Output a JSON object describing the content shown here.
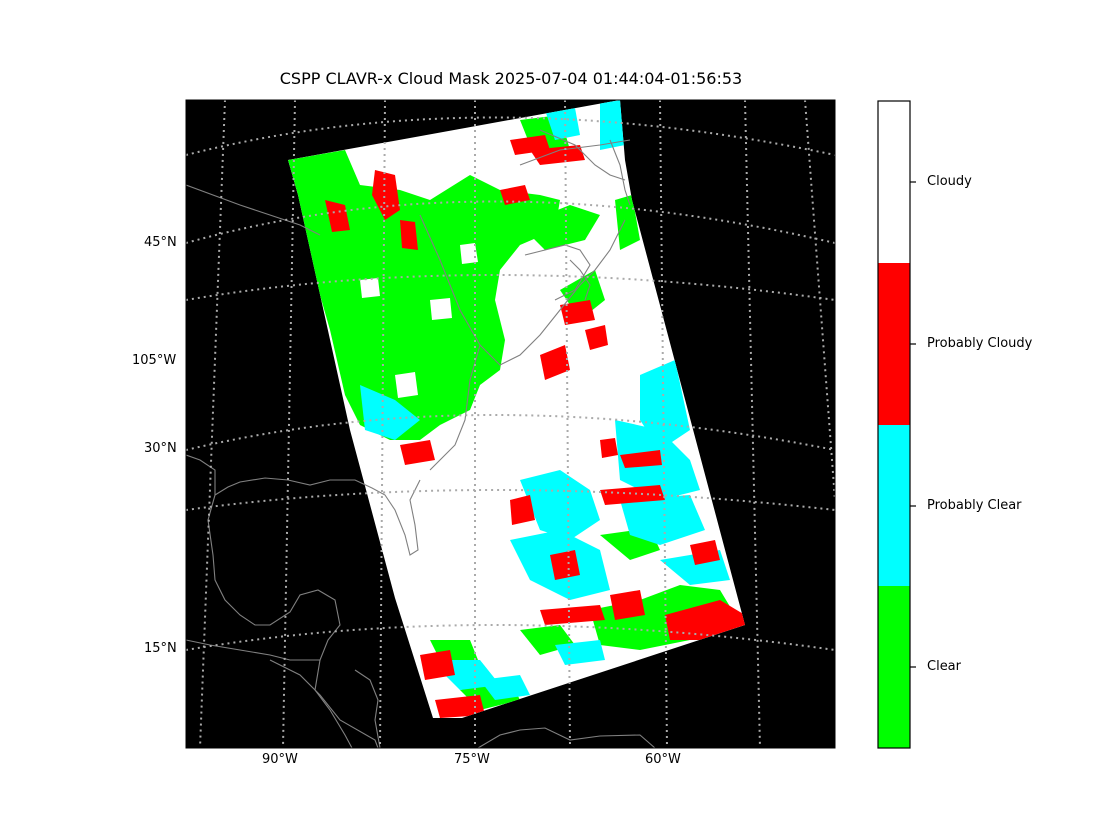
{
  "title": "CSPP CLAVR-x Cloud Mask 2025-07-04 01:44:04-01:56:53",
  "left_labels": [
    "45°N",
    "105°W",
    "30°N",
    "15°N"
  ],
  "bottom_labels": [
    "90°W",
    "75°W",
    "60°W"
  ],
  "colorbar": {
    "categories": [
      {
        "label": "Cloudy",
        "color": "#ffffff"
      },
      {
        "label": "Probably Cloudy",
        "color": "#ff0000"
      },
      {
        "label": "Probably Clear",
        "color": "#00ffff"
      },
      {
        "label": "Clear",
        "color": "#00ff00"
      }
    ]
  },
  "colors": {
    "background": "#000000",
    "coastline": "#808080",
    "gridline": "#aaaaaa"
  }
}
